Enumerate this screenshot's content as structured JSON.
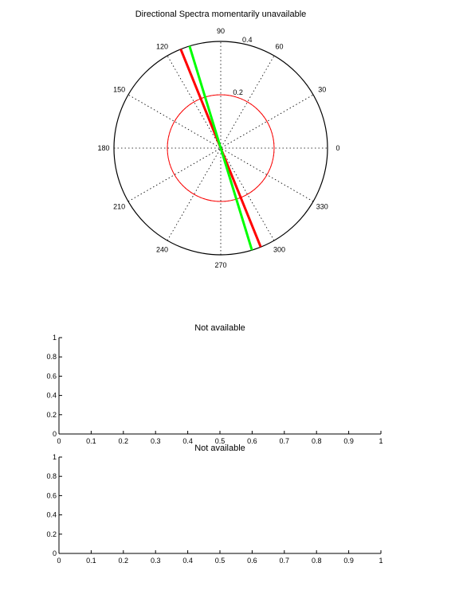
{
  "chart_data": [
    {
      "type": "polar",
      "title": "Directional Spectra momentarily unavailable",
      "rmax": 0.4,
      "radial_ticks": [
        {
          "r": 0.2,
          "label": "0.2",
          "label_angle_deg": 80
        },
        {
          "r": 0.4,
          "label": "0.4",
          "label_angle_deg": 80
        }
      ],
      "angle_labels": [
        "0",
        "30",
        "60",
        "90",
        "120",
        "150",
        "180",
        "210",
        "240",
        "270",
        "300",
        "330"
      ],
      "spokes_deg": [
        0,
        30,
        60,
        90,
        120,
        150
      ],
      "reference_circle": {
        "r": 0.2,
        "color": "#ff0000"
      },
      "lines": [
        {
          "color": "#ff0000",
          "angle_deg": 112,
          "r": 0.4
        },
        {
          "color": "#00ff00",
          "angle_deg": 107,
          "r": 0.4
        }
      ]
    },
    {
      "type": "line",
      "title": "Not available",
      "xlim": [
        0,
        1
      ],
      "ylim": [
        0,
        1
      ],
      "xticks": [
        "0",
        "0.1",
        "0.2",
        "0.3",
        "0.4",
        "0.5",
        "0.6",
        "0.7",
        "0.8",
        "0.9",
        "1"
      ],
      "yticks": [
        "0",
        "0.2",
        "0.4",
        "0.6",
        "0.8",
        "1"
      ],
      "series": []
    },
    {
      "type": "line",
      "title": "Not available",
      "xlim": [
        0,
        1
      ],
      "ylim": [
        0,
        1
      ],
      "xticks": [
        "0",
        "0.1",
        "0.2",
        "0.3",
        "0.4",
        "0.5",
        "0.6",
        "0.7",
        "0.8",
        "0.9",
        "1"
      ],
      "yticks": [
        "0",
        "0.2",
        "0.4",
        "0.6",
        "0.8",
        "1"
      ],
      "series": []
    }
  ]
}
